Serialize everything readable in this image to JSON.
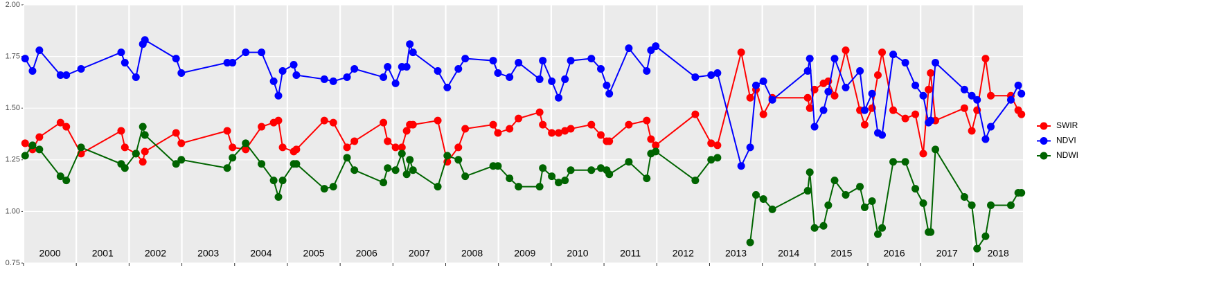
{
  "chart_data": {
    "type": "line",
    "x": [
      2000.03,
      2000.17,
      2000.3,
      2000.7,
      2000.81,
      2001.09,
      2001.85,
      2001.92,
      2002.13,
      2002.26,
      2002.3,
      2002.89,
      2002.99,
      2003.86,
      2003.96,
      2004.21,
      2004.51,
      2004.74,
      2004.83,
      2004.91,
      2005.12,
      2005.17,
      2005.7,
      2005.87,
      2006.13,
      2006.27,
      2006.82,
      2006.9,
      2007.05,
      2007.17,
      2007.26,
      2007.32,
      2007.38,
      2007.85,
      2008.03,
      2008.24,
      2008.37,
      2008.9,
      2008.99,
      2009.21,
      2009.38,
      2009.78,
      2009.84,
      2010.01,
      2010.14,
      2010.26,
      2010.37,
      2010.76,
      2010.94,
      2011.05,
      2011.1,
      2011.47,
      2011.81,
      2011.89,
      2011.98,
      2012.73,
      2013.03,
      2013.15,
      2013.6,
      2013.77,
      2013.88,
      2014.02,
      2014.19,
      2014.86,
      2014.9,
      2014.99,
      2015.16,
      2015.25,
      2015.37,
      2015.58,
      2015.85,
      2015.94,
      2016.08,
      2016.19,
      2016.27,
      2016.48,
      2016.71,
      2016.9,
      2017.05,
      2017.15,
      2017.19,
      2017.28,
      2017.83,
      2017.97,
      2018.07,
      2018.23,
      2018.33,
      2018.71,
      2018.85,
      2018.91
    ],
    "series": [
      {
        "name": "SWIR",
        "color": "#ff0000",
        "values": [
          1.33,
          1.3,
          1.36,
          1.43,
          1.41,
          1.28,
          1.39,
          1.31,
          1.28,
          1.24,
          1.29,
          1.38,
          1.33,
          1.39,
          1.31,
          1.3,
          1.41,
          1.43,
          1.44,
          1.31,
          1.29,
          1.3,
          1.44,
          1.43,
          1.31,
          1.34,
          1.43,
          1.34,
          1.31,
          1.31,
          1.39,
          1.42,
          1.42,
          1.44,
          1.24,
          1.31,
          1.4,
          1.42,
          1.38,
          1.4,
          1.45,
          1.48,
          1.42,
          1.38,
          1.38,
          1.39,
          1.4,
          1.42,
          1.37,
          1.34,
          1.34,
          1.42,
          1.44,
          1.35,
          1.32,
          1.47,
          1.33,
          1.32,
          1.77,
          1.55,
          1.59,
          1.47,
          1.55,
          1.55,
          1.5,
          1.59,
          1.62,
          1.63,
          1.56,
          1.78,
          1.49,
          1.42,
          1.5,
          1.66,
          1.77,
          1.49,
          1.45,
          1.47,
          1.28,
          1.59,
          1.67,
          1.44,
          1.5,
          1.39,
          1.49,
          1.74,
          1.56,
          1.56,
          1.49,
          1.47
        ]
      },
      {
        "name": "NDVI",
        "color": "#0000ff",
        "values": [
          1.74,
          1.68,
          1.78,
          1.66,
          1.66,
          1.69,
          1.77,
          1.72,
          1.65,
          1.81,
          1.83,
          1.74,
          1.67,
          1.72,
          1.72,
          1.77,
          1.77,
          1.63,
          1.56,
          1.68,
          1.71,
          1.66,
          1.64,
          1.63,
          1.65,
          1.69,
          1.65,
          1.7,
          1.62,
          1.7,
          1.7,
          1.81,
          1.77,
          1.68,
          1.6,
          1.69,
          1.74,
          1.73,
          1.67,
          1.65,
          1.72,
          1.64,
          1.73,
          1.63,
          1.55,
          1.64,
          1.73,
          1.74,
          1.69,
          1.61,
          1.57,
          1.79,
          1.68,
          1.78,
          1.8,
          1.65,
          1.66,
          1.67,
          1.22,
          1.31,
          1.61,
          1.63,
          1.54,
          1.68,
          1.74,
          1.41,
          1.49,
          1.58,
          1.74,
          1.6,
          1.68,
          1.49,
          1.57,
          1.38,
          1.37,
          1.76,
          1.72,
          1.61,
          1.56,
          1.43,
          1.44,
          1.72,
          1.59,
          1.56,
          1.54,
          1.35,
          1.41,
          1.54,
          1.61,
          1.57
        ]
      },
      {
        "name": "NDWI",
        "color": "#006400",
        "values": [
          1.27,
          1.32,
          1.3,
          1.17,
          1.15,
          1.31,
          1.23,
          1.21,
          1.28,
          1.41,
          1.37,
          1.23,
          1.25,
          1.21,
          1.26,
          1.33,
          1.23,
          1.15,
          1.07,
          1.15,
          1.23,
          1.23,
          1.11,
          1.12,
          1.26,
          1.2,
          1.14,
          1.21,
          1.2,
          1.28,
          1.18,
          1.25,
          1.2,
          1.12,
          1.27,
          1.25,
          1.17,
          1.22,
          1.22,
          1.16,
          1.12,
          1.12,
          1.21,
          1.17,
          1.14,
          1.15,
          1.2,
          1.2,
          1.21,
          1.2,
          1.18,
          1.24,
          1.16,
          1.28,
          1.29,
          1.15,
          1.25,
          1.26,
          null,
          0.85,
          1.08,
          1.06,
          1.01,
          1.1,
          1.19,
          0.92,
          0.93,
          1.03,
          1.15,
          1.08,
          1.12,
          1.02,
          1.05,
          0.89,
          0.92,
          1.24,
          1.24,
          1.11,
          1.04,
          0.9,
          0.9,
          1.3,
          1.07,
          1.03,
          0.82,
          0.88,
          1.03,
          1.03,
          1.09,
          1.09
        ]
      }
    ],
    "xlim": [
      2000,
      2018.94
    ],
    "xticks": [
      2000,
      2001,
      2002,
      2003,
      2004,
      2005,
      2006,
      2007,
      2008,
      2009,
      2010,
      2011,
      2012,
      2013,
      2014,
      2015,
      2016,
      2017,
      2018
    ],
    "ylim": [
      0.75,
      2.0
    ],
    "yticks": [
      {
        "value": 0.75,
        "label": "0.75"
      },
      {
        "value": 1.0,
        "label": "1.00"
      },
      {
        "value": 1.25,
        "label": "1.25"
      },
      {
        "value": 1.5,
        "label": "1.50"
      },
      {
        "value": 1.75,
        "label": "1.75"
      },
      {
        "value": 2.0,
        "label": "2.00"
      }
    ],
    "grid": true,
    "legend": "right"
  }
}
